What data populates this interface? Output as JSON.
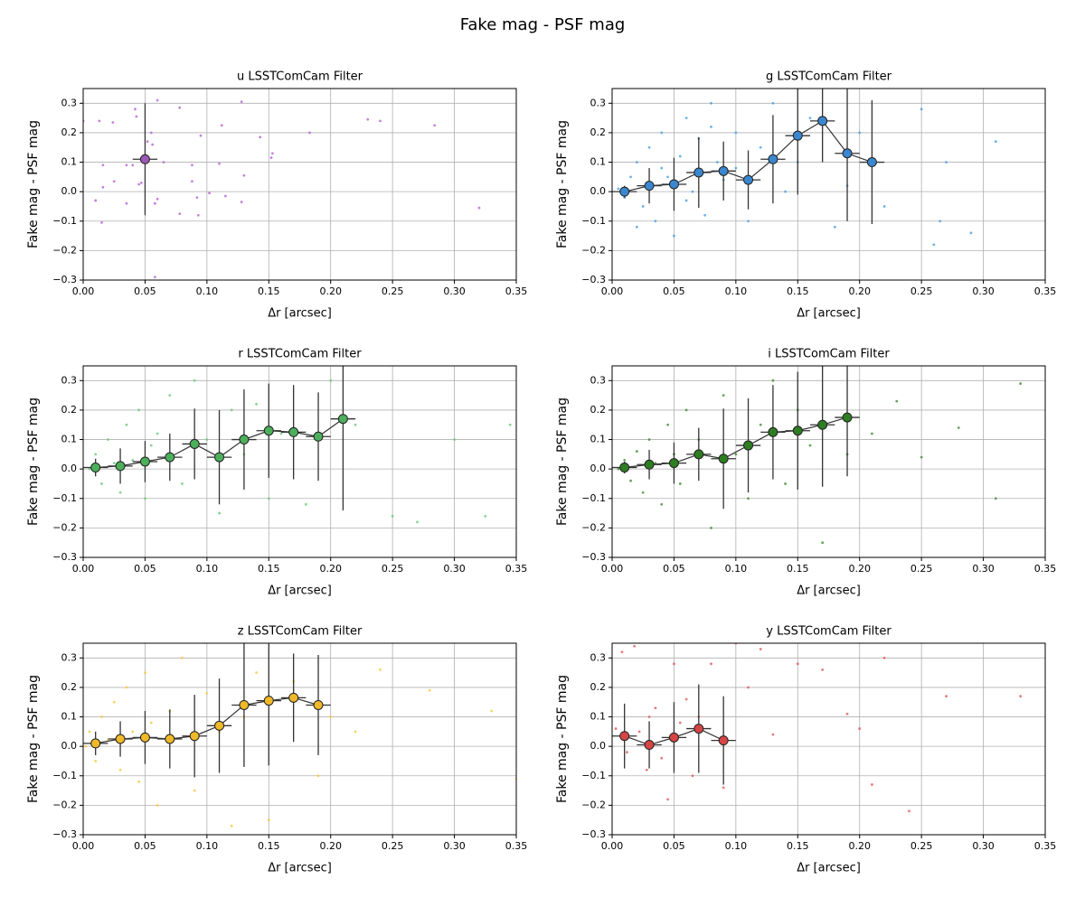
{
  "title": "Fake mag - PSF mag",
  "chart_data": [
    {
      "type": "scatter",
      "title": "u LSSTComCam Filter",
      "x_label": "Δr [arcsec]",
      "y_label": "Fake mag - PSF mag",
      "xlim": [
        0,
        0.35
      ],
      "ylim": [
        -0.3,
        0.35
      ],
      "grid": true,
      "xticks": [
        {
          "value": 0,
          "label": "0.00"
        },
        {
          "value": 0.05,
          "label": "0.05"
        },
        {
          "value": 0.1,
          "label": "0.10"
        },
        {
          "value": 0.15,
          "label": "0.15"
        },
        {
          "value": 0.2,
          "label": "0.20"
        },
        {
          "value": 0.25,
          "label": "0.25"
        },
        {
          "value": 0.3,
          "label": "0.30"
        },
        {
          "value": 0.35,
          "label": "0.35"
        }
      ],
      "yticks": [
        {
          "value": -0.3,
          "label": "−0.3"
        },
        {
          "value": -0.2,
          "label": "−0.2"
        },
        {
          "value": -0.1,
          "label": "−0.1"
        },
        {
          "value": 0,
          "label": "0.0"
        },
        {
          "value": 0.1,
          "label": "0.1"
        },
        {
          "value": 0.2,
          "label": "0.2"
        },
        {
          "value": 0.3,
          "label": "0.3"
        }
      ],
      "points": {
        "color": "#b564d6",
        "x": [
          0.0,
          0.013,
          0.024,
          0.01,
          0.015,
          0.016,
          0.016,
          0.025,
          0.035,
          0.035,
          0.04,
          0.042,
          0.043,
          0.045,
          0.047,
          0.05,
          0.052,
          0.055,
          0.056,
          0.058,
          0.06,
          0.06,
          0.065,
          0.058,
          0.078,
          0.078,
          0.088,
          0.088,
          0.092,
          0.093,
          0.095,
          0.102,
          0.11,
          0.112,
          0.115,
          0.128,
          0.128,
          0.13,
          0.143,
          0.152,
          0.153,
          0.183,
          0.23,
          0.24,
          0.284,
          0.32
        ],
        "y": [
          0.24,
          0.24,
          0.235,
          -0.03,
          -0.105,
          0.09,
          0.015,
          0.035,
          0.09,
          -0.04,
          0.09,
          0.28,
          0.255,
          0.025,
          0.03,
          0.12,
          0.17,
          0.2,
          0.16,
          -0.04,
          -0.025,
          0.31,
          0.1,
          -0.29,
          0.285,
          -0.075,
          0.09,
          0.035,
          -0.02,
          -0.08,
          0.19,
          -0.005,
          0.095,
          0.225,
          -0.015,
          0.305,
          -0.035,
          0.055,
          0.185,
          0.115,
          0.13,
          0.2,
          0.245,
          0.24,
          0.225,
          -0.055
        ]
      },
      "binned": {
        "color": "#9b59b6",
        "x": [
          0.05
        ],
        "y": [
          0.11
        ],
        "yerr": [
          0.19
        ],
        "xerr": 0.01
      }
    },
    {
      "type": "scatter",
      "title": "g LSSTComCam Filter",
      "x_label": "Δr [arcsec]",
      "y_label": "Fake mag - PSF mag",
      "xlim": [
        0,
        0.35
      ],
      "ylim": [
        -0.3,
        0.35
      ],
      "grid": true,
      "xticks": [
        {
          "value": 0,
          "label": "0.00"
        },
        {
          "value": 0.05,
          "label": "0.05"
        },
        {
          "value": 0.1,
          "label": "0.10"
        },
        {
          "value": 0.15,
          "label": "0.15"
        },
        {
          "value": 0.2,
          "label": "0.20"
        },
        {
          "value": 0.25,
          "label": "0.25"
        },
        {
          "value": 0.3,
          "label": "0.30"
        },
        {
          "value": 0.35,
          "label": "0.35"
        }
      ],
      "yticks": [
        {
          "value": -0.3,
          "label": "−0.3"
        },
        {
          "value": -0.2,
          "label": "−0.2"
        },
        {
          "value": -0.1,
          "label": "−0.1"
        },
        {
          "value": 0,
          "label": "0.0"
        },
        {
          "value": 0.1,
          "label": "0.1"
        },
        {
          "value": 0.2,
          "label": "0.2"
        },
        {
          "value": 0.3,
          "label": "0.3"
        }
      ],
      "points": {
        "color": "#4a9fe0",
        "x": [
          0.005,
          0.01,
          0.015,
          0.02,
          0.025,
          0.03,
          0.035,
          0.04,
          0.045,
          0.05,
          0.055,
          0.06,
          0.065,
          0.07,
          0.075,
          0.08,
          0.085,
          0.09,
          0.1,
          0.11,
          0.12,
          0.13,
          0.14,
          0.16,
          0.18,
          0.2,
          0.22,
          0.25,
          0.26,
          0.27,
          0.29,
          0.31,
          0.02,
          0.04,
          0.06,
          0.08,
          0.1,
          0.15,
          0.19,
          0.265
        ],
        "y": [
          0.01,
          -0.02,
          0.05,
          0.1,
          -0.05,
          0.15,
          -0.1,
          0.2,
          0.05,
          -0.15,
          0.12,
          0.25,
          0.0,
          0.18,
          -0.08,
          0.3,
          0.1,
          0.04,
          0.2,
          -0.1,
          0.15,
          0.3,
          0.0,
          0.25,
          -0.12,
          0.2,
          -0.05,
          0.28,
          -0.18,
          0.1,
          -0.14,
          0.17,
          -0.12,
          0.08,
          -0.03,
          0.22,
          0.08,
          0.1,
          0.02,
          -0.1
        ]
      },
      "binned": {
        "color": "#3a87cf",
        "x": [
          0.01,
          0.03,
          0.05,
          0.07,
          0.09,
          0.11,
          0.13,
          0.15,
          0.17,
          0.19,
          0.21
        ],
        "y": [
          0.0,
          0.02,
          0.025,
          0.065,
          0.07,
          0.04,
          0.11,
          0.19,
          0.24,
          0.13,
          0.1
        ],
        "yerr": [
          0.02,
          0.06,
          0.09,
          0.12,
          0.1,
          0.1,
          0.15,
          0.2,
          0.14,
          0.23,
          0.21
        ],
        "xerr": 0.01
      }
    },
    {
      "type": "scatter",
      "title": "r LSSTComCam Filter",
      "x_label": "Δr [arcsec]",
      "y_label": "Fake mag - PSF mag",
      "xlim": [
        0,
        0.35
      ],
      "ylim": [
        -0.3,
        0.35
      ],
      "grid": true,
      "xticks": [
        {
          "value": 0,
          "label": "0.00"
        },
        {
          "value": 0.05,
          "label": "0.05"
        },
        {
          "value": 0.1,
          "label": "0.10"
        },
        {
          "value": 0.15,
          "label": "0.15"
        },
        {
          "value": 0.2,
          "label": "0.20"
        },
        {
          "value": 0.25,
          "label": "0.25"
        },
        {
          "value": 0.3,
          "label": "0.30"
        },
        {
          "value": 0.35,
          "label": "0.35"
        }
      ],
      "yticks": [
        {
          "value": -0.3,
          "label": "−0.3"
        },
        {
          "value": -0.2,
          "label": "−0.2"
        },
        {
          "value": -0.1,
          "label": "−0.1"
        },
        {
          "value": 0,
          "label": "0.0"
        },
        {
          "value": 0.1,
          "label": "0.1"
        },
        {
          "value": 0.2,
          "label": "0.2"
        },
        {
          "value": 0.3,
          "label": "0.3"
        }
      ],
      "points": {
        "color": "#6cc779",
        "x": [
          0.005,
          0.01,
          0.015,
          0.02,
          0.025,
          0.03,
          0.035,
          0.04,
          0.045,
          0.05,
          0.055,
          0.06,
          0.07,
          0.08,
          0.09,
          0.1,
          0.11,
          0.12,
          0.13,
          0.14,
          0.15,
          0.16,
          0.18,
          0.2,
          0.22,
          0.25,
          0.27,
          0.3,
          0.325,
          0.345
        ],
        "y": [
          0.0,
          0.05,
          -0.05,
          0.1,
          0.02,
          -0.08,
          0.15,
          0.03,
          0.2,
          -0.1,
          0.08,
          0.12,
          0.25,
          -0.05,
          0.3,
          0.1,
          -0.15,
          0.2,
          0.05,
          0.22,
          -0.1,
          0.12,
          -0.12,
          0.3,
          0.15,
          -0.16,
          -0.18,
          0.1,
          -0.16,
          0.15
        ]
      },
      "binned": {
        "color": "#4caf5c",
        "x": [
          0.01,
          0.03,
          0.05,
          0.07,
          0.09,
          0.11,
          0.13,
          0.15,
          0.17,
          0.19,
          0.21
        ],
        "y": [
          0.005,
          0.01,
          0.025,
          0.04,
          0.085,
          0.04,
          0.1,
          0.13,
          0.125,
          0.11,
          0.17
        ],
        "yerr": [
          0.03,
          0.06,
          0.07,
          0.08,
          0.12,
          0.16,
          0.17,
          0.16,
          0.16,
          0.15,
          0.31
        ],
        "xerr": 0.01
      }
    },
    {
      "type": "scatter",
      "title": "i LSSTComCam Filter",
      "x_label": "Δr [arcsec]",
      "y_label": "Fake mag - PSF mag",
      "xlim": [
        0,
        0.35
      ],
      "ylim": [
        -0.3,
        0.35
      ],
      "grid": true,
      "xticks": [
        {
          "value": 0,
          "label": "0.00"
        },
        {
          "value": 0.05,
          "label": "0.05"
        },
        {
          "value": 0.1,
          "label": "0.10"
        },
        {
          "value": 0.15,
          "label": "0.15"
        },
        {
          "value": 0.2,
          "label": "0.20"
        },
        {
          "value": 0.25,
          "label": "0.25"
        },
        {
          "value": 0.3,
          "label": "0.30"
        },
        {
          "value": 0.35,
          "label": "0.35"
        }
      ],
      "yticks": [
        {
          "value": -0.3,
          "label": "−0.3"
        },
        {
          "value": -0.2,
          "label": "−0.2"
        },
        {
          "value": -0.1,
          "label": "−0.1"
        },
        {
          "value": 0,
          "label": "0.0"
        },
        {
          "value": 0.1,
          "label": "0.1"
        },
        {
          "value": 0.2,
          "label": "0.2"
        },
        {
          "value": 0.3,
          "label": "0.3"
        }
      ],
      "points": {
        "color": "#3d8f2f",
        "x": [
          0.005,
          0.01,
          0.015,
          0.02,
          0.025,
          0.03,
          0.035,
          0.04,
          0.045,
          0.05,
          0.055,
          0.06,
          0.07,
          0.08,
          0.09,
          0.1,
          0.11,
          0.12,
          0.13,
          0.14,
          0.15,
          0.16,
          0.17,
          0.19,
          0.21,
          0.23,
          0.25,
          0.28,
          0.31,
          0.33
        ],
        "y": [
          0.0,
          0.03,
          -0.04,
          0.06,
          -0.08,
          0.1,
          0.02,
          -0.12,
          0.15,
          0.05,
          -0.05,
          0.2,
          0.1,
          -0.2,
          0.25,
          0.05,
          -0.1,
          0.15,
          0.3,
          -0.05,
          0.2,
          0.08,
          -0.25,
          0.05,
          0.12,
          0.23,
          0.04,
          0.14,
          -0.1,
          0.29
        ]
      },
      "binned": {
        "color": "#2e7d22",
        "x": [
          0.01,
          0.03,
          0.05,
          0.07,
          0.09,
          0.11,
          0.13,
          0.15,
          0.17,
          0.19
        ],
        "y": [
          0.005,
          0.015,
          0.02,
          0.05,
          0.035,
          0.08,
          0.125,
          0.13,
          0.15,
          0.175
        ],
        "yerr": [
          0.02,
          0.05,
          0.07,
          0.09,
          0.17,
          0.16,
          0.16,
          0.2,
          0.21,
          0.2
        ],
        "xerr": 0.01
      }
    },
    {
      "type": "scatter",
      "title": "z LSSTComCam Filter",
      "x_label": "Δr [arcsec]",
      "y_label": "Fake mag - PSF mag",
      "xlim": [
        0,
        0.35
      ],
      "ylim": [
        -0.3,
        0.35
      ],
      "grid": true,
      "xticks": [
        {
          "value": 0,
          "label": "0.00"
        },
        {
          "value": 0.05,
          "label": "0.05"
        },
        {
          "value": 0.1,
          "label": "0.10"
        },
        {
          "value": 0.15,
          "label": "0.15"
        },
        {
          "value": 0.2,
          "label": "0.20"
        },
        {
          "value": 0.25,
          "label": "0.25"
        },
        {
          "value": 0.3,
          "label": "0.30"
        },
        {
          "value": 0.35,
          "label": "0.35"
        }
      ],
      "yticks": [
        {
          "value": -0.3,
          "label": "−0.3"
        },
        {
          "value": -0.2,
          "label": "−0.2"
        },
        {
          "value": -0.1,
          "label": "−0.1"
        },
        {
          "value": 0,
          "label": "0.0"
        },
        {
          "value": 0.1,
          "label": "0.1"
        },
        {
          "value": 0.2,
          "label": "0.2"
        },
        {
          "value": 0.3,
          "label": "0.3"
        }
      ],
      "points": {
        "color": "#f7c83a",
        "x": [
          0.002,
          0.005,
          0.01,
          0.015,
          0.02,
          0.025,
          0.03,
          0.035,
          0.04,
          0.045,
          0.05,
          0.055,
          0.06,
          0.07,
          0.08,
          0.09,
          0.1,
          0.11,
          0.12,
          0.13,
          0.14,
          0.15,
          0.17,
          0.19,
          0.2,
          0.22,
          0.24,
          0.28,
          0.33,
          0.35
        ],
        "y": [
          0.0,
          0.05,
          -0.05,
          0.1,
          0.02,
          0.15,
          -0.08,
          0.2,
          0.05,
          -0.12,
          0.25,
          0.08,
          -0.2,
          0.12,
          0.3,
          -0.15,
          0.18,
          0.05,
          -0.27,
          0.1,
          0.25,
          -0.25,
          0.22,
          -0.1,
          0.1,
          0.05,
          0.26,
          0.19,
          0.12,
          -0.11
        ]
      },
      "binned": {
        "color": "#f0b92a",
        "x": [
          0.01,
          0.03,
          0.05,
          0.07,
          0.09,
          0.11,
          0.13,
          0.15,
          0.17,
          0.19
        ],
        "y": [
          0.01,
          0.025,
          0.03,
          0.025,
          0.035,
          0.07,
          0.14,
          0.155,
          0.165,
          0.14
        ],
        "yerr": [
          0.04,
          0.06,
          0.09,
          0.1,
          0.14,
          0.16,
          0.21,
          0.22,
          0.15,
          0.17
        ],
        "xerr": 0.01
      }
    },
    {
      "type": "scatter",
      "title": "y LSSTComCam Filter",
      "x_label": "Δr [arcsec]",
      "y_label": "Fake mag - PSF mag",
      "xlim": [
        0,
        0.35
      ],
      "ylim": [
        -0.3,
        0.35
      ],
      "grid": true,
      "xticks": [
        {
          "value": 0,
          "label": "0.00"
        },
        {
          "value": 0.05,
          "label": "0.05"
        },
        {
          "value": 0.1,
          "label": "0.10"
        },
        {
          "value": 0.15,
          "label": "0.15"
        },
        {
          "value": 0.2,
          "label": "0.20"
        },
        {
          "value": 0.25,
          "label": "0.25"
        },
        {
          "value": 0.3,
          "label": "0.30"
        },
        {
          "value": 0.35,
          "label": "0.35"
        }
      ],
      "yticks": [
        {
          "value": -0.3,
          "label": "−0.3"
        },
        {
          "value": -0.2,
          "label": "−0.2"
        },
        {
          "value": -0.1,
          "label": "−0.1"
        },
        {
          "value": 0,
          "label": "0.0"
        },
        {
          "value": 0.1,
          "label": "0.1"
        },
        {
          "value": 0.2,
          "label": "0.2"
        },
        {
          "value": 0.3,
          "label": "0.3"
        }
      ],
      "points": {
        "color": "#e05a5a",
        "x": [
          0.003,
          0.008,
          0.012,
          0.018,
          0.022,
          0.028,
          0.03,
          0.035,
          0.04,
          0.045,
          0.05,
          0.055,
          0.06,
          0.065,
          0.07,
          0.08,
          0.09,
          0.1,
          0.11,
          0.12,
          0.13,
          0.15,
          0.17,
          0.19,
          0.2,
          0.21,
          0.22,
          0.24,
          0.27,
          0.33
        ],
        "y": [
          0.06,
          0.32,
          -0.02,
          0.34,
          0.05,
          -0.08,
          0.1,
          0.13,
          -0.04,
          -0.18,
          0.28,
          0.08,
          0.16,
          -0.1,
          0.1,
          0.28,
          -0.14,
          0.35,
          0.2,
          0.33,
          0.04,
          0.28,
          0.26,
          0.11,
          0.06,
          -0.13,
          0.3,
          -0.22,
          0.17,
          0.17
        ]
      },
      "binned": {
        "color": "#d64545",
        "x": [
          0.01,
          0.03,
          0.05,
          0.07,
          0.09
        ],
        "y": [
          0.035,
          0.005,
          0.03,
          0.06,
          0.02
        ],
        "yerr": [
          0.11,
          0.08,
          0.12,
          0.15,
          0.15
        ],
        "xerr": 0.01
      }
    }
  ]
}
